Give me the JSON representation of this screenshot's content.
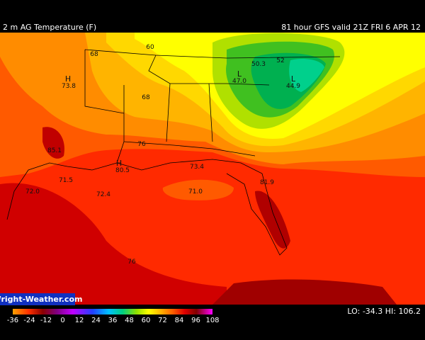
{
  "header": {
    "title": "2 m AG Temperature (F)",
    "run": "81 hour GFS valid 21Z FRI  6 APR 12"
  },
  "credit": "Wright-Weather.com",
  "map": {
    "labels": [
      "68",
      "60",
      "H",
      "73.8",
      "50.3",
      "52",
      "L",
      "47.0",
      "L",
      "44.9",
      "68",
      "76",
      "85.1",
      "H",
      "80.5",
      "73.4",
      "71.5",
      "72.0",
      "72.4",
      "71.0",
      "81.9",
      "76"
    ]
  },
  "colorbar": {
    "ticks": [
      -36,
      -24,
      -12,
      0,
      12,
      24,
      36,
      48,
      60,
      72,
      84,
      96,
      108
    ],
    "extremes": "LO: -34.3  HI: 106.2"
  }
}
